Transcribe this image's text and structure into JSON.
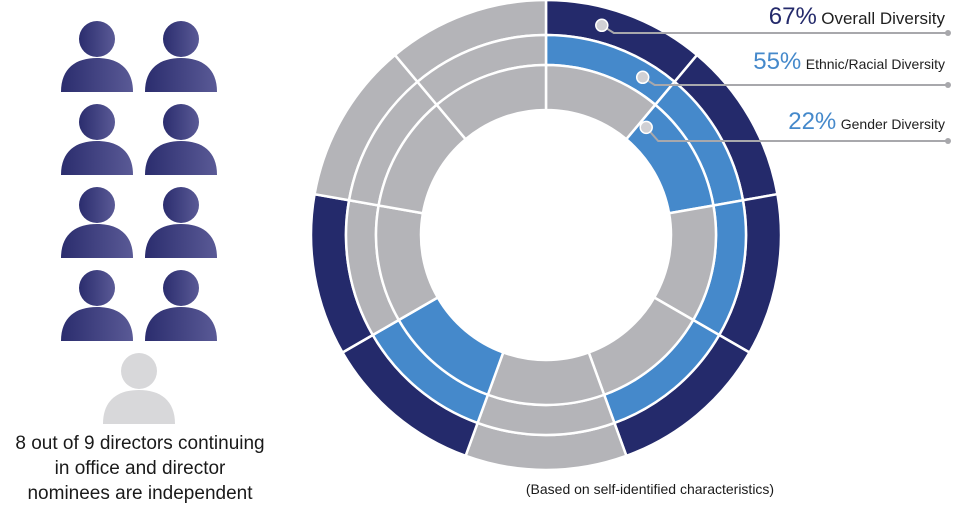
{
  "colors": {
    "navy": "#242a6b",
    "blue": "#4589cb",
    "gray": "#b4b4b8",
    "person_dark": "#3d3f7c",
    "person_light": "#d8d8da"
  },
  "directors": {
    "independent": 8,
    "total": 9,
    "icon": "person-icon",
    "caption_lines": [
      "8 out of 9 directors continuing",
      "in office and director",
      "nominees are independent"
    ]
  },
  "note": "(Based on self-identified characteristics)",
  "chart_data": {
    "type": "pie",
    "variant": "concentric-donut",
    "segments_per_ring": 9,
    "series": [
      {
        "name": "Overall Diversity",
        "value_label": "67%",
        "value": 67,
        "filled_segments": 6,
        "color": "#242a6b"
      },
      {
        "name": "Ethnic/Racial Diversity",
        "value_label": "55%",
        "value": 55,
        "filled_segments": 5,
        "color": "#4589cb"
      },
      {
        "name": "Gender Diversity",
        "value_label": "22%",
        "value": 22,
        "filled_segments": 2,
        "color": "#4589cb"
      }
    ],
    "remainder_color": "#b4b4b8",
    "ring_filled_indices": [
      [
        0,
        1,
        2,
        3,
        5,
        6
      ],
      [
        0,
        1,
        2,
        3,
        5
      ],
      [
        1,
        5
      ]
    ],
    "label_colors": [
      "#242a6b",
      "#4589cb",
      "#4589cb"
    ]
  }
}
